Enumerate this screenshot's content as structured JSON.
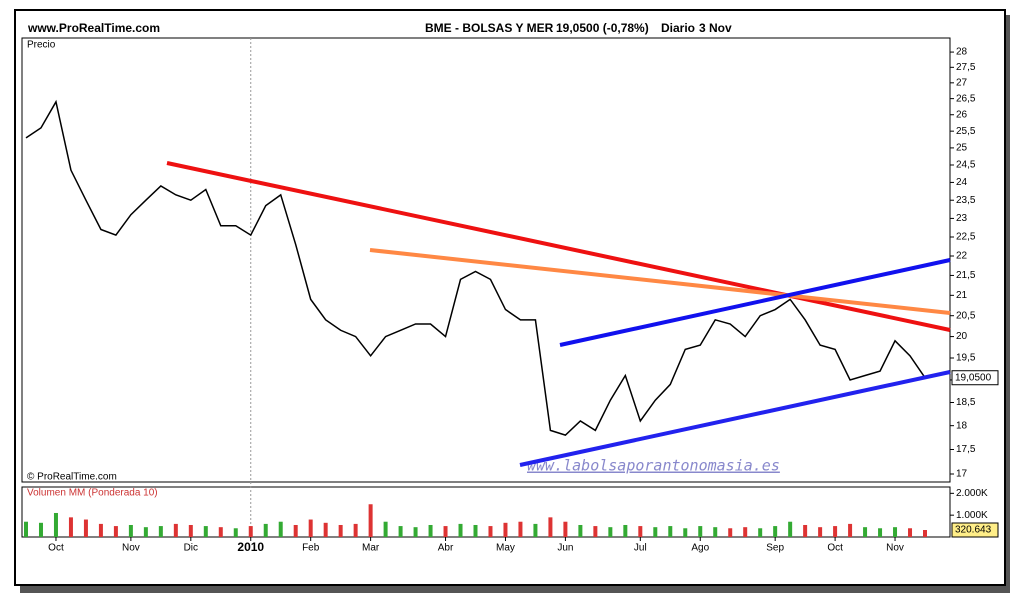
{
  "site": "www.ProRealTime.com",
  "chart_data": {
    "type": "line",
    "title": "BME - BOLSAS Y MER",
    "quote": "19,0500 (-0,78%)",
    "period": "Diario",
    "date": "3 Nov",
    "y_label": "Precio",
    "copyright": "© ProRealTime.com",
    "watermark": "www.labolsaporantonomasia.es",
    "log_scale": true,
    "color": "#000000",
    "categories": [
      null,
      null,
      "Oct",
      null,
      null,
      null,
      null,
      "Nov",
      null,
      null,
      null,
      "Dic",
      null,
      null,
      null,
      "2010",
      null,
      null,
      null,
      "Feb",
      null,
      null,
      null,
      "Mar",
      null,
      null,
      null,
      null,
      "Abr",
      null,
      null,
      null,
      "May",
      null,
      null,
      null,
      "Jun",
      null,
      null,
      null,
      null,
      "Jul",
      null,
      null,
      null,
      "Ago",
      null,
      null,
      null,
      null,
      "Sep",
      null,
      null,
      null,
      "Oct",
      null,
      null,
      null,
      "Nov",
      null,
      null
    ],
    "values": [
      25.3,
      25.6,
      26.4,
      24.35,
      23.5,
      22.7,
      22.55,
      23.1,
      23.5,
      23.9,
      23.65,
      23.5,
      23.8,
      22.8,
      22.8,
      22.55,
      23.35,
      23.65,
      22.3,
      20.9,
      20.4,
      20.15,
      20.0,
      19.55,
      20.0,
      20.15,
      20.3,
      20.3,
      20.0,
      21.4,
      21.6,
      21.4,
      20.65,
      20.4,
      20.4,
      17.9,
      17.8,
      18.1,
      17.9,
      18.55,
      19.1,
      18.1,
      18.55,
      18.9,
      19.7,
      19.8,
      20.4,
      20.3,
      20.0,
      20.5,
      20.65,
      20.9,
      20.4,
      19.8,
      19.7,
      19.0,
      19.1,
      19.2,
      19.9,
      19.55,
      19.05
    ],
    "last": {
      "value": 19.05,
      "label": "19,0500"
    },
    "ylim": [
      16.84,
      28.47
    ],
    "yticks": [
      17,
      {
        "value": 17.5,
        "label": "17,5"
      },
      18,
      {
        "value": 18.5,
        "label": "18,5"
      },
      19,
      {
        "value": 19.5,
        "label": "19,5"
      },
      20,
      {
        "value": 20.5,
        "label": "20,5"
      },
      21,
      {
        "value": 21.5,
        "label": "21,5"
      },
      22,
      {
        "value": 22.5,
        "label": "22,5"
      },
      23,
      {
        "value": 23.5,
        "label": "23,5"
      },
      24,
      {
        "value": 24.5,
        "label": "24,5"
      },
      25,
      {
        "value": 25.5,
        "label": "25,5"
      },
      26,
      {
        "value": 26.5,
        "label": "26,5"
      },
      27,
      {
        "value": 27.5,
        "label": "27,5"
      },
      28
    ],
    "volume": {
      "name": "Volumen MM (Ponderada 10)",
      "up_color": "#33aa33",
      "down_color": "#dd3333",
      "values": [
        700,
        650,
        1100,
        900,
        800,
        600,
        500,
        550,
        450,
        500,
        600,
        550,
        500,
        450,
        400,
        500,
        600,
        700,
        550,
        800,
        650,
        550,
        600,
        1500,
        700,
        500,
        450,
        550,
        500,
        600,
        550,
        500,
        650,
        700,
        600,
        900,
        700,
        550,
        500,
        450,
        550,
        500,
        450,
        500,
        400,
        500,
        450,
        400,
        450,
        400,
        500,
        700,
        550,
        450,
        500,
        600,
        450,
        400,
        450,
        400,
        320.643
      ],
      "last": {
        "value": 320.643,
        "label": "320.643"
      },
      "ylim": [
        0,
        2290
      ],
      "yticks": [
        {
          "value": 1000,
          "label": "1.000K"
        },
        {
          "value": 2000,
          "label": "2.000K"
        }
      ]
    }
  }
}
